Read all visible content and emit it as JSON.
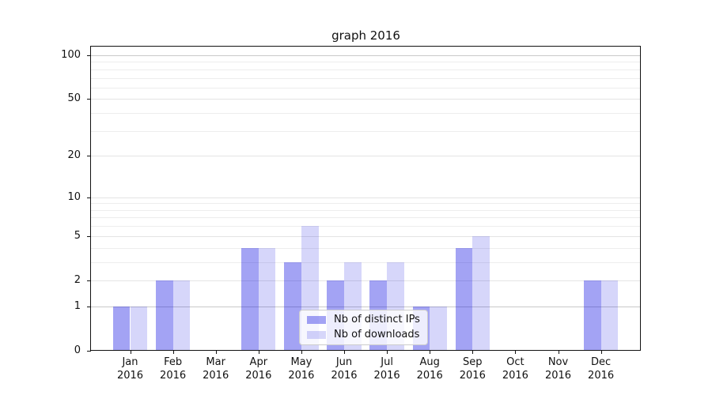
{
  "chart_data": {
    "type": "bar",
    "title": "graph 2016",
    "categories": [
      "Jan",
      "Feb",
      "Mar",
      "Apr",
      "May",
      "Jun",
      "Jul",
      "Aug",
      "Sep",
      "Oct",
      "Nov",
      "Dec"
    ],
    "x_year_label": "2016",
    "series": [
      {
        "name": "Nb of distinct IPs",
        "color": "rgba(0,0,225,0.36)",
        "color_hex": "#a3a3f4",
        "values": [
          1,
          2,
          0,
          4,
          3,
          2,
          2,
          1,
          4,
          0,
          0,
          2
        ]
      },
      {
        "name": "Nb of downloads",
        "color": "rgba(0,0,225,0.16)",
        "color_hex": "#d6d6fa",
        "values": [
          1,
          2,
          0,
          4,
          6,
          3,
          3,
          1,
          5,
          0,
          0,
          2
        ]
      }
    ],
    "y_axis": {
      "scale": "log1p",
      "range": [
        0,
        100
      ],
      "tick_values": [
        0,
        1,
        2,
        5,
        10,
        20,
        50,
        100
      ],
      "major_gridlines": [
        1,
        2,
        5,
        10,
        20,
        50,
        100
      ],
      "minor_gridlines": [
        3,
        4,
        6,
        7,
        8,
        9,
        30,
        40,
        60,
        70,
        80,
        90
      ]
    },
    "grid": true,
    "legend": {
      "position": "lower center inside plot"
    },
    "colors": {
      "grid_major_strong": "#c9c9c9",
      "grid_major": "#e4e4e4",
      "grid_minor": "#ededed",
      "axis": "#111111",
      "background": "#ffffff"
    }
  }
}
